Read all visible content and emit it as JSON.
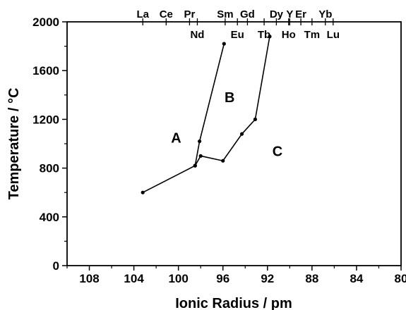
{
  "chart_data": {
    "type": "line",
    "xlabel": "Ionic Radius / pm",
    "ylabel": "Temperature / °C",
    "xlim": [
      110,
      80
    ],
    "ylim": [
      0,
      2000
    ],
    "x_reversed": true,
    "x_ticks": [
      108,
      104,
      100,
      96,
      92,
      88,
      84,
      80
    ],
    "y_ticks": [
      0,
      400,
      800,
      1200,
      1600,
      2000
    ],
    "grid": false,
    "top_axis_labels": [
      {
        "label": "La",
        "x": 103.2,
        "row": "upper"
      },
      {
        "label": "Ce",
        "x": 101.1,
        "row": "upper"
      },
      {
        "label": "Pr",
        "x": 99.0,
        "row": "upper"
      },
      {
        "label": "Nd",
        "x": 98.3,
        "row": "lower"
      },
      {
        "label": "Sm",
        "x": 95.8,
        "row": "upper"
      },
      {
        "label": "Eu",
        "x": 94.7,
        "row": "lower"
      },
      {
        "label": "Gd",
        "x": 93.8,
        "row": "upper"
      },
      {
        "label": "Tb",
        "x": 92.3,
        "row": "lower"
      },
      {
        "label": "Dy",
        "x": 91.2,
        "row": "upper"
      },
      {
        "label": "Y",
        "x": 90.0,
        "row": "upper"
      },
      {
        "label": "Ho",
        "x": 90.1,
        "row": "lower"
      },
      {
        "label": "Er",
        "x": 89.0,
        "row": "upper"
      },
      {
        "label": "Tm",
        "x": 88.0,
        "row": "lower"
      },
      {
        "label": "Yb",
        "x": 86.8,
        "row": "upper"
      },
      {
        "label": "Lu",
        "x": 86.1,
        "row": "lower"
      }
    ],
    "series": [
      {
        "x": [
          103.2,
          98.5,
          98.0,
          96.0,
          94.3,
          93.1,
          91.8
        ],
        "y": [
          600,
          820,
          900,
          860,
          1080,
          1200,
          1880
        ]
      },
      {
        "x": [
          98.5,
          98.1,
          95.9
        ],
        "y": [
          820,
          1020,
          1820
        ]
      }
    ],
    "annotations": [
      {
        "text": "A",
        "x": 100.2,
        "y": 1010
      },
      {
        "text": "B",
        "x": 95.4,
        "y": 1340
      },
      {
        "text": "C",
        "x": 91.1,
        "y": 900
      }
    ]
  }
}
